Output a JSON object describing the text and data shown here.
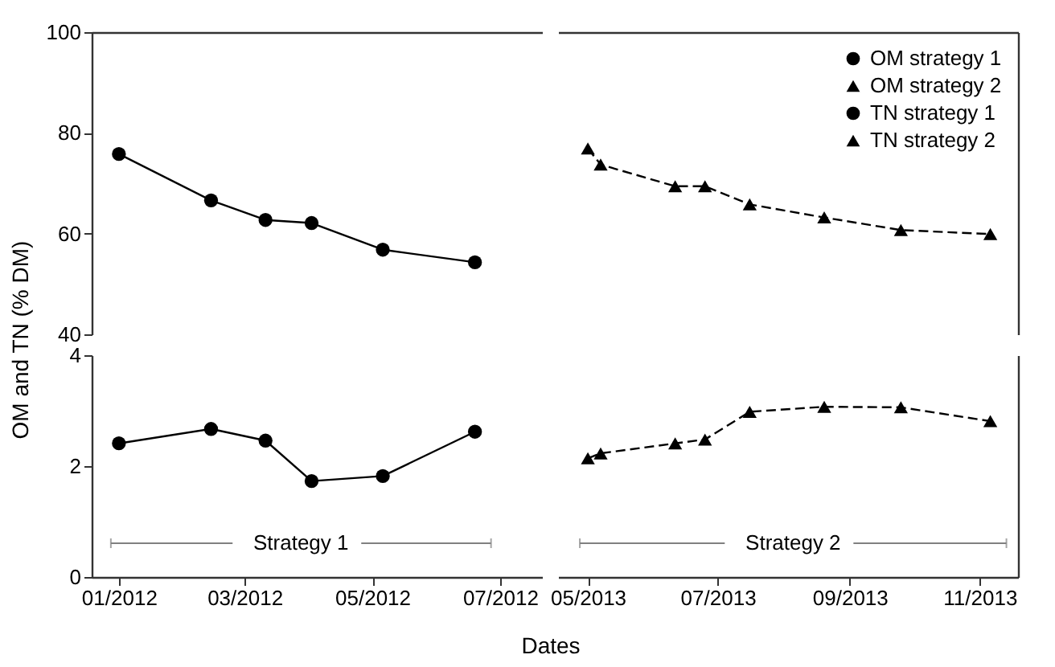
{
  "chart_data": [
    {
      "type": "line",
      "ylabel": "OM and TN (% DM)",
      "xlim": [
        "2011-12-19",
        "2012-07-21"
      ],
      "ylim": [
        40,
        100
      ],
      "yticks": [
        40,
        60,
        80,
        100
      ],
      "tick_labels": "y",
      "line_style": "solid",
      "marker": "circle",
      "series": [
        {
          "name": "OM strategy 1",
          "color": "#000000",
          "x": [
            "2012-01-01",
            "2012-02-14",
            "2012-03-11",
            "2012-04-02",
            "2012-05-06",
            "2012-06-19"
          ],
          "values": [
            75.8,
            66.6,
            62.7,
            62.1,
            56.8,
            54.3
          ]
        }
      ]
    },
    {
      "type": "line",
      "xlim": [
        "2013-04-17",
        "2013-11-19"
      ],
      "ylim": [
        40,
        100
      ],
      "yticks": [
        40,
        60,
        80,
        100
      ],
      "tick_labels": false,
      "line_style": "dashed",
      "marker": "triangle",
      "legend": "top right",
      "series": [
        {
          "name": "OM strategy 2",
          "color": "#000000",
          "x": [
            "2013-05-01",
            "2013-05-07",
            "2013-06-11",
            "2013-06-25",
            "2013-07-16",
            "2013-08-20",
            "2013-09-25",
            "2013-11-06"
          ],
          "values": [
            76.9,
            73.7,
            69.4,
            69.4,
            65.8,
            63.2,
            60.7,
            59.9
          ]
        }
      ]
    },
    {
      "type": "line",
      "xlabel": "Dates",
      "xlim": [
        "2011-12-19",
        "2012-07-21"
      ],
      "xticks": [
        {
          "value": "2012-01-01",
          "label": "01/2012"
        },
        {
          "value": "2012-03-01",
          "label": "03/2012"
        },
        {
          "value": "2012-05-01",
          "label": "05/2012"
        },
        {
          "value": "2012-07-01",
          "label": "07/2012"
        }
      ],
      "ylim": [
        0,
        4
      ],
      "yticks": [
        0,
        2,
        4
      ],
      "line_style": "solid",
      "marker": "circle",
      "annotations": [
        "Strategy 1"
      ],
      "series": [
        {
          "name": "TN strategy 1",
          "color": "#000000",
          "x": [
            "2012-01-01",
            "2012-02-14",
            "2012-03-11",
            "2012-04-02",
            "2012-05-06",
            "2012-06-19"
          ],
          "values": [
            2.41,
            2.67,
            2.46,
            1.73,
            1.82,
            2.62
          ]
        }
      ]
    },
    {
      "type": "line",
      "xlim": [
        "2013-04-17",
        "2013-11-19"
      ],
      "xticks": [
        {
          "value": "2013-05-01",
          "label": "05/2013"
        },
        {
          "value": "2013-07-01",
          "label": "07/2013"
        },
        {
          "value": "2013-09-01",
          "label": "09/2013"
        },
        {
          "value": "2013-11-01",
          "label": "11/2013"
        }
      ],
      "ylim": [
        0,
        4
      ],
      "yticks": [
        0,
        2,
        4
      ],
      "tick_labels": "x",
      "line_style": "dashed",
      "marker": "triangle",
      "annotations": [
        "Strategy 2"
      ],
      "series": [
        {
          "name": "TN strategy 2",
          "color": "#000000",
          "x": [
            "2013-05-01",
            "2013-05-07",
            "2013-06-11",
            "2013-06-25",
            "2013-07-16",
            "2013-08-20",
            "2013-09-25",
            "2013-11-06"
          ],
          "values": [
            2.14,
            2.23,
            2.41,
            2.48,
            2.98,
            3.07,
            3.06,
            2.81
          ]
        }
      ]
    }
  ]
}
